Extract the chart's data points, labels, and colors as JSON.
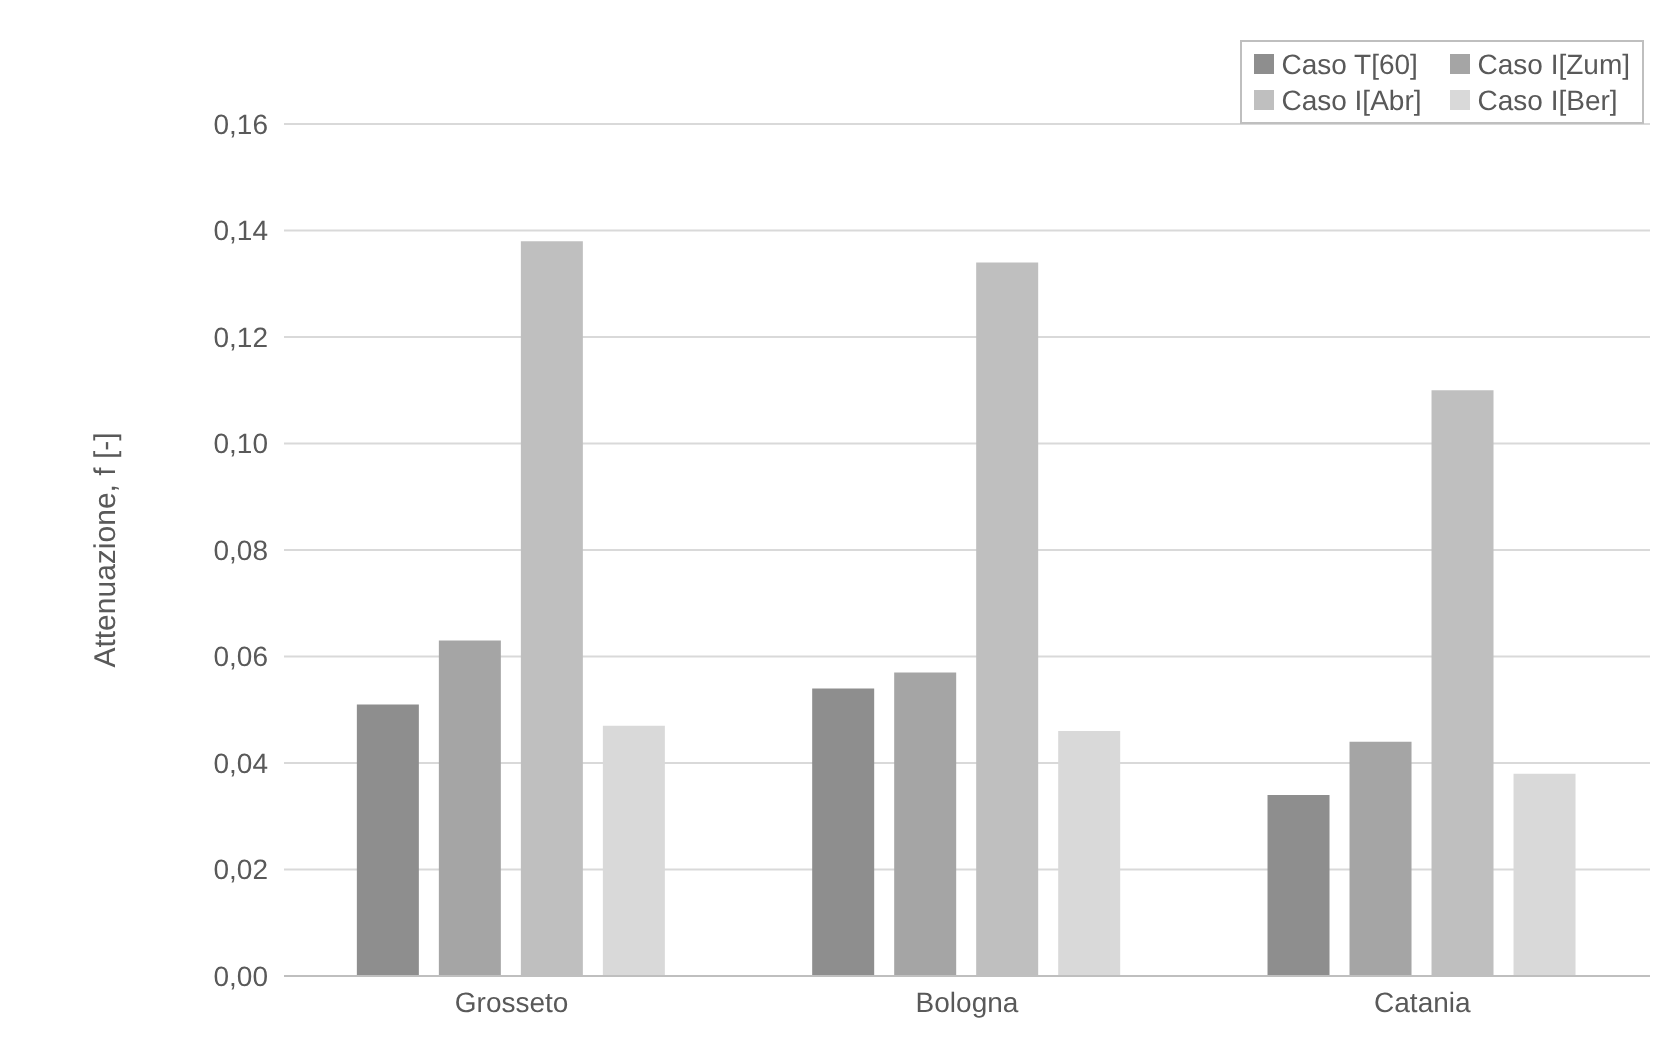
{
  "chart_data": {
    "type": "bar",
    "ylabel": "Attenuazione, f [-]",
    "categories": [
      "Grosseto",
      "Bologna",
      "Catania"
    ],
    "series": [
      {
        "name": "Caso T[60]",
        "color": "#8e8e8e",
        "values": [
          0.051,
          0.054,
          0.034
        ]
      },
      {
        "name": "Caso I[Zum]",
        "color": "#a5a5a5",
        "values": [
          0.063,
          0.057,
          0.044
        ]
      },
      {
        "name": "Caso I[Abr]",
        "color": "#bfbfbf",
        "values": [
          0.138,
          0.134,
          0.11
        ]
      },
      {
        "name": "Caso I[Ber]",
        "color": "#d9d9d9",
        "values": [
          0.047,
          0.046,
          0.038
        ]
      }
    ],
    "ylim": [
      0,
      0.16
    ],
    "yticks": [
      {
        "value": 0,
        "label": "0,00"
      },
      {
        "value": 0.02,
        "label": "0,02"
      },
      {
        "value": 0.04,
        "label": "0,04"
      },
      {
        "value": 0.06,
        "label": "0,06"
      },
      {
        "value": 0.08,
        "label": "0,08"
      },
      {
        "value": 0.1,
        "label": "0,10"
      },
      {
        "value": 0.12,
        "label": "0,12"
      },
      {
        "value": 0.14,
        "label": "0,14"
      },
      {
        "value": 0.16,
        "label": "0,16"
      }
    ],
    "grid": "y",
    "legend": "top right"
  }
}
